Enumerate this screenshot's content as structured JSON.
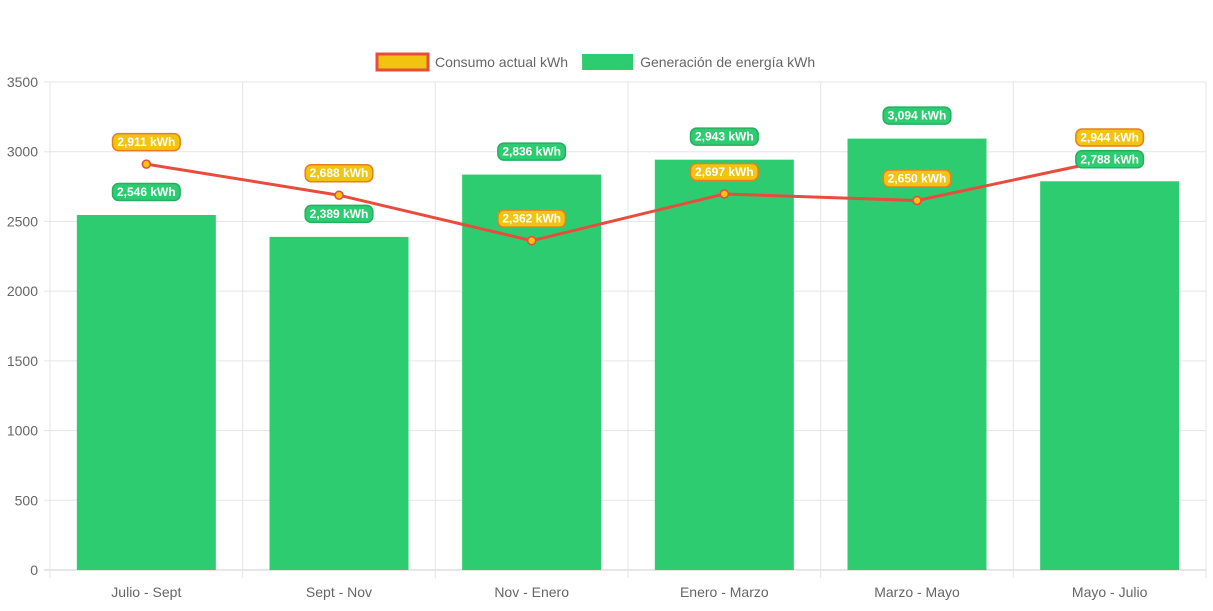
{
  "chart_data": {
    "type": "bar",
    "categories": [
      "Julio - Sept",
      "Sept - Nov",
      "Nov - Enero",
      "Enero - Marzo",
      "Marzo - Mayo",
      "Mayo - Julio"
    ],
    "series": [
      {
        "name": "Consumo actual kWh",
        "type": "line",
        "values": [
          2911,
          2688,
          2362,
          2697,
          2650,
          2944
        ],
        "labels": [
          "2,911 kWh",
          "2,688 kWh",
          "2,362 kWh",
          "2,697 kWh",
          "2,650 kWh",
          "2,944 kWh"
        ],
        "color": "#e74c3c",
        "fill_color": "#f1c40f"
      },
      {
        "name": "Generación de energía kWh",
        "type": "bar",
        "values": [
          2546,
          2389,
          2836,
          2943,
          3094,
          2788
        ],
        "labels": [
          "2,546 kWh",
          "2,389 kWh",
          "2,836 kWh",
          "2,943 kWh",
          "3,094 kWh",
          "2,788 kWh"
        ],
        "color": "#2ecc71"
      }
    ],
    "ylim": [
      0,
      3500
    ],
    "yticks": [
      0,
      500,
      1000,
      1500,
      2000,
      2500,
      3000,
      3500
    ],
    "grid": true,
    "legend_position": "top-center"
  }
}
